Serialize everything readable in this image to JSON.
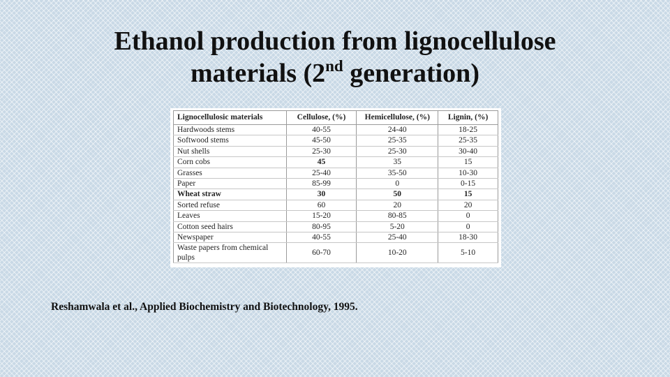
{
  "title": {
    "line1": "Ethanol production from lignocellulose",
    "line2_prefix": "materials (2",
    "line2_sup": "nd",
    "line2_suffix": " generation)"
  },
  "table": {
    "headers": [
      "Lignocellulosic materials",
      "Cellulose, (%)",
      "Hemicellulose, (%)",
      "Lignin, (%)"
    ],
    "rows": [
      [
        "Hardwoods stems",
        "40-55",
        "24-40",
        "18-25"
      ],
      [
        "Softwood stems",
        "45-50",
        "25-35",
        "25-35"
      ],
      [
        "Nut shells",
        "25-30",
        "25-30",
        "30-40"
      ],
      [
        "Corn cobs",
        "45",
        "35",
        "15"
      ],
      [
        "Grasses",
        "25-40",
        "35-50",
        "10-30"
      ],
      [
        "Paper",
        "85-99",
        "0",
        "0-15"
      ],
      [
        "Wheat straw",
        "30",
        "50",
        "15"
      ],
      [
        "Sorted refuse",
        "60",
        "20",
        "20"
      ],
      [
        "Leaves",
        "15-20",
        "80-85",
        "0"
      ],
      [
        "Cotton seed hairs",
        "80-95",
        "5-20",
        "0"
      ],
      [
        "Newspaper",
        "40-55",
        "25-40",
        "18-30"
      ],
      [
        "Waste papers from chemical pulps",
        "60-70",
        "10-20",
        "5-10"
      ]
    ]
  },
  "citation": "Reshamwala et al., Applied Biochemistry and Biotechnology, 1995."
}
